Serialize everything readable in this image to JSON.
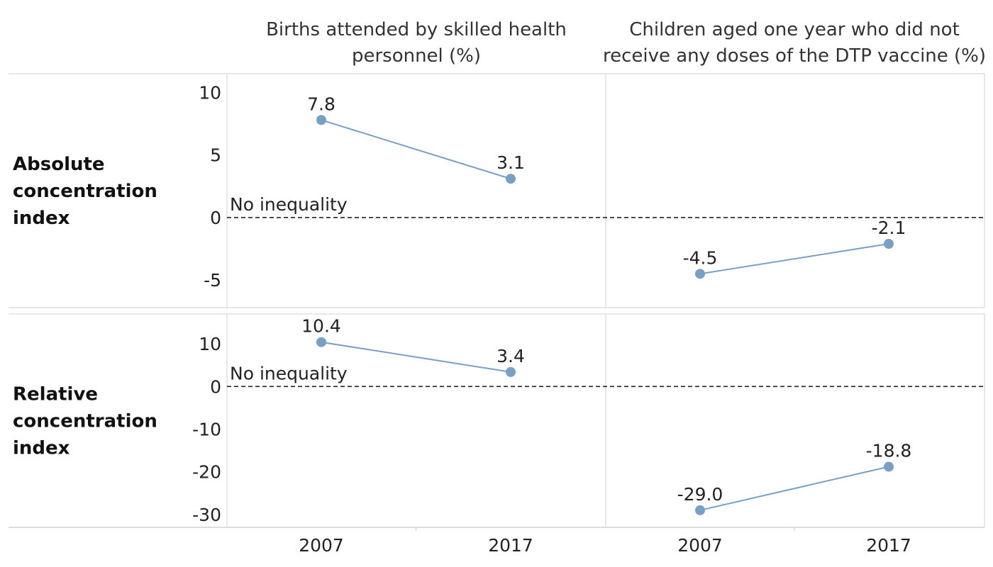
{
  "chart_data": {
    "type": "line",
    "columns": [
      {
        "title_lines": [
          "Births attended by skilled health",
          "personnel (%)"
        ]
      },
      {
        "title_lines": [
          "Children aged one year who did not",
          "receive any doses of the DTP vaccine (%)"
        ]
      }
    ],
    "x": [
      "2007",
      "2017"
    ],
    "panels": [
      {
        "row_label_lines": [
          "Absolute",
          "concentration",
          "index"
        ],
        "ylim": [
          -7.2,
          11.5
        ],
        "yticks": [
          10,
          5,
          0,
          -5
        ],
        "reference_label": "No inequality",
        "series": [
          {
            "values": [
              7.8,
              3.1
            ],
            "labels": [
              "7.8",
              "3.1"
            ]
          },
          {
            "values": [
              -4.5,
              -2.1
            ],
            "labels": [
              "-4.5",
              "-2.1"
            ]
          }
        ]
      },
      {
        "row_label_lines": [
          "Relative",
          "concentration",
          "index"
        ],
        "ylim": [
          -33,
          17
        ],
        "yticks": [
          10,
          0,
          -10,
          -20,
          -30
        ],
        "reference_label": "No inequality",
        "series": [
          {
            "values": [
              10.4,
              3.4
            ],
            "labels": [
              "10.4",
              "3.4"
            ]
          },
          {
            "values": [
              -29.0,
              -18.8
            ],
            "labels": [
              "-29.0",
              "-18.8"
            ]
          }
        ]
      }
    ],
    "series_color": "#789fc4",
    "reference_line": {
      "value": 0,
      "style": "dashed",
      "color": "#222222"
    },
    "grid": false,
    "legend": "none"
  }
}
